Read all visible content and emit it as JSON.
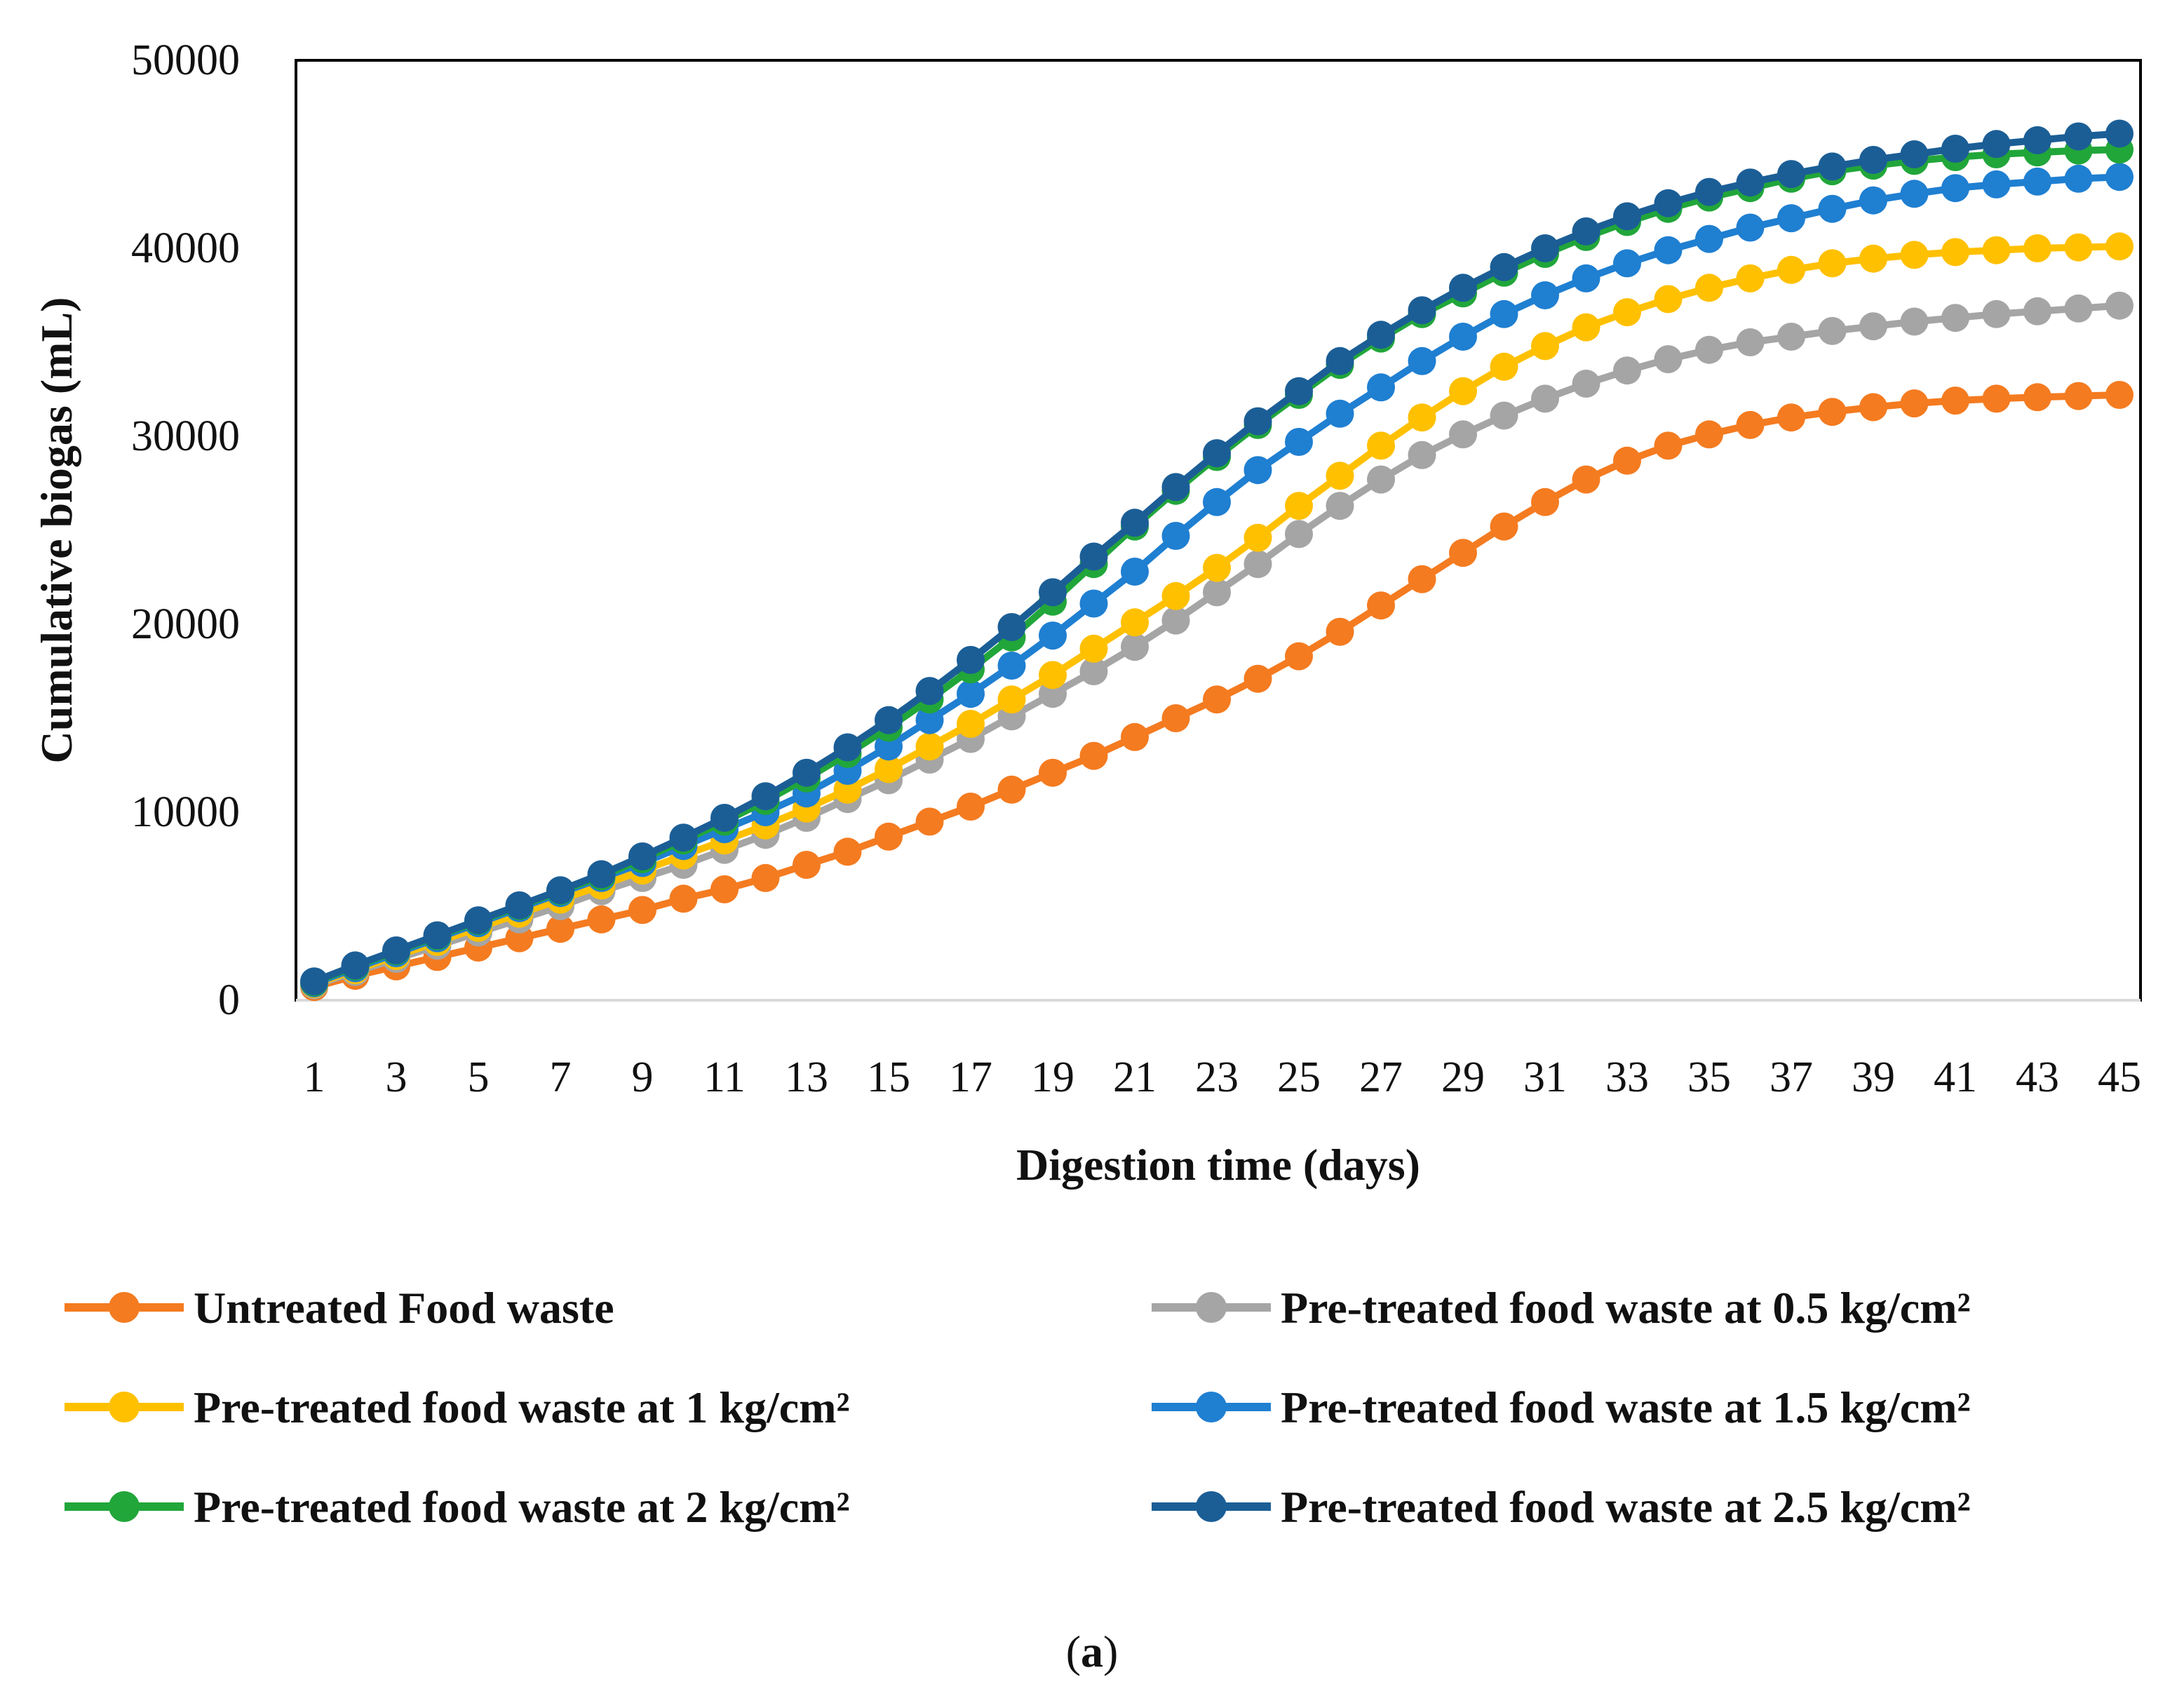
{
  "chart_data": {
    "type": "line",
    "title": "",
    "xlabel": "Digestion time (days)",
    "ylabel": "Cumulative biogas (mL)",
    "xlim": [
      1,
      45
    ],
    "ylim": [
      0,
      50000
    ],
    "yticks": [
      "0",
      "10000",
      "20000",
      "30000",
      "40000",
      "50000"
    ],
    "xticks": [
      "1",
      "3",
      "5",
      "7",
      "9",
      "11",
      "13",
      "15",
      "17",
      "19",
      "21",
      "23",
      "25",
      "27",
      "29",
      "31",
      "33",
      "35",
      "37",
      "39",
      "41",
      "43",
      "45"
    ],
    "grid": false,
    "legend_position": "bottom",
    "series": [
      {
        "name": "Untreated Food waste",
        "color": "#F47B20",
        "values": [
          700,
          1300,
          1800,
          2300,
          2800,
          3300,
          3800,
          4300,
          4800,
          5400,
          5900,
          6500,
          7200,
          7900,
          8700,
          9500,
          10300,
          11200,
          12100,
          13000,
          14000,
          15000,
          16000,
          17100,
          18300,
          19600,
          21000,
          22400,
          23800,
          25200,
          26500,
          27700,
          28700,
          29500,
          30100,
          30600,
          31000,
          31300,
          31550,
          31750,
          31900,
          32000,
          32080,
          32140,
          32200
        ]
      },
      {
        "name": "Pre-treated food waste at 0.5 kg/cm²",
        "color": "#A5A5A5",
        "values": [
          800,
          1500,
          2200,
          2900,
          3600,
          4300,
          5000,
          5800,
          6500,
          7200,
          8000,
          8800,
          9700,
          10700,
          11700,
          12800,
          13900,
          15100,
          16300,
          17500,
          18800,
          20200,
          21700,
          23200,
          24800,
          26300,
          27700,
          29000,
          30100,
          31100,
          32000,
          32800,
          33500,
          34100,
          34600,
          35000,
          35300,
          35600,
          35850,
          36100,
          36300,
          36500,
          36650,
          36800,
          36950
        ]
      },
      {
        "name": "Pre-treated food waste at 1 kg/cm²",
        "color": "#FFC000",
        "values": [
          850,
          1600,
          2350,
          3100,
          3850,
          4600,
          5350,
          6100,
          6900,
          7700,
          8500,
          9300,
          10200,
          11200,
          12300,
          13500,
          14700,
          16000,
          17300,
          18700,
          20100,
          21500,
          23000,
          24600,
          26300,
          27900,
          29500,
          31000,
          32400,
          33700,
          34800,
          35800,
          36600,
          37300,
          37900,
          38400,
          38850,
          39200,
          39450,
          39650,
          39800,
          39900,
          40000,
          40050,
          40100
        ]
      },
      {
        "name": "Pre-treated food waste at 1.5 kg/cm²",
        "color": "#1F7FD1",
        "values": [
          900,
          1700,
          2500,
          3300,
          4100,
          4900,
          5700,
          6500,
          7300,
          8200,
          9100,
          10000,
          11000,
          12200,
          13500,
          14900,
          16300,
          17800,
          19400,
          21100,
          22800,
          24700,
          26500,
          28200,
          29700,
          31200,
          32600,
          34000,
          35300,
          36500,
          37500,
          38400,
          39200,
          39900,
          40500,
          41100,
          41600,
          42100,
          42550,
          42900,
          43200,
          43400,
          43550,
          43700,
          43800
        ]
      },
      {
        "name": "Pre-treated food waste at 2 kg/cm²",
        "color": "#21A63A",
        "values": [
          950,
          1800,
          2600,
          3400,
          4200,
          5000,
          5800,
          6600,
          7500,
          8500,
          9500,
          10600,
          11800,
          13100,
          14500,
          16000,
          17600,
          19300,
          21200,
          23200,
          25200,
          27100,
          28900,
          30600,
          32200,
          33800,
          35200,
          36500,
          37600,
          38700,
          39700,
          40600,
          41400,
          42100,
          42700,
          43200,
          43700,
          44100,
          44400,
          44650,
          44850,
          45000,
          45100,
          45200,
          45250
        ]
      },
      {
        "name": "Pre-treated food waste at 2.5 kg/cm²",
        "color": "#1B5E96",
        "values": [
          1000,
          1850,
          2650,
          3450,
          4250,
          5050,
          5850,
          6700,
          7650,
          8650,
          9700,
          10850,
          12100,
          13450,
          14900,
          16450,
          18100,
          19850,
          21700,
          23600,
          25400,
          27300,
          29100,
          30800,
          32400,
          34000,
          35400,
          36700,
          37900,
          39000,
          40000,
          40900,
          41700,
          42400,
          43000,
          43500,
          43950,
          44350,
          44700,
          45000,
          45300,
          45550,
          45750,
          45950,
          46100
        ]
      }
    ]
  },
  "caption": {
    "open": "(",
    "label": "a",
    "close": ")"
  }
}
